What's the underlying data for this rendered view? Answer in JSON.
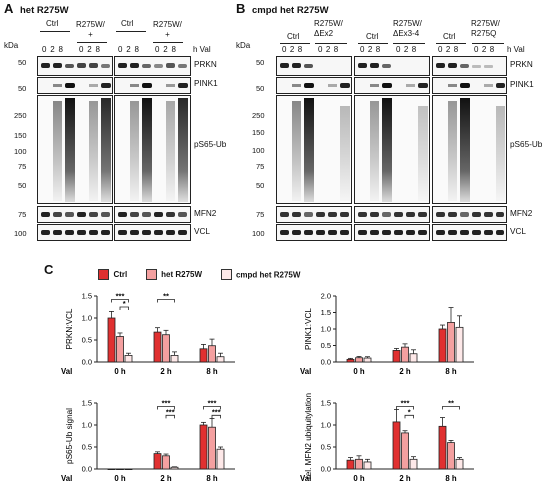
{
  "panelA": {
    "letter": "A",
    "title": "het R275W",
    "kda_label": "kDa",
    "groups": [
      "Ctrl",
      "R275W/\n+",
      "Ctrl",
      "R275W/\n+"
    ],
    "val_label": "h Val",
    "timepoints": [
      "0",
      "2",
      "8"
    ],
    "markers": [
      "50",
      "50",
      "250",
      "150",
      "100",
      "75",
      "50",
      "75",
      "100"
    ],
    "rows": [
      "PRKN",
      "PINK1",
      "pS65-Ub",
      "MFN2",
      "VCL"
    ]
  },
  "panelB": {
    "letter": "B",
    "title": "cmpd het R275W",
    "kda_label": "kDa",
    "groups": [
      "Ctrl",
      "R275W/\nΔEx2",
      "Ctrl",
      "R275W/\nΔEx3-4",
      "Ctrl",
      "R275W/\nR275Q"
    ],
    "val_label": "h Val",
    "timepoints": [
      "0",
      "2",
      "8"
    ],
    "markers": [
      "50",
      "50",
      "250",
      "150",
      "100",
      "75",
      "50",
      "75",
      "100"
    ],
    "rows": [
      "PRKN",
      "PINK1",
      "pS65-Ub",
      "MFN2",
      "VCL"
    ]
  },
  "panelC": {
    "letter": "C",
    "legend": [
      {
        "label": "Ctrl",
        "color": "#e03030"
      },
      {
        "label": "het R275W",
        "color": "#f4a0a0"
      },
      {
        "label": "cmpd het R275W",
        "color": "#fde8e8"
      }
    ]
  },
  "chart_data": [
    {
      "type": "bar",
      "ylabel": "PRKN:VCL",
      "xlabel": "Val",
      "categories": [
        "0 h",
        "2 h",
        "8 h"
      ],
      "ylim": [
        0,
        1.5
      ],
      "yticks": [
        "0.0",
        "0.5",
        "1.0",
        "1.5"
      ],
      "series": [
        {
          "name": "Ctrl",
          "values": [
            1.0,
            0.68,
            0.3
          ],
          "errors": [
            0.15,
            0.1,
            0.1
          ]
        },
        {
          "name": "het R275W",
          "values": [
            0.58,
            0.62,
            0.37
          ],
          "errors": [
            0.08,
            0.1,
            0.15
          ]
        },
        {
          "name": "cmpd het R275W",
          "values": [
            0.15,
            0.15,
            0.12
          ],
          "errors": [
            0.05,
            0.08,
            0.08
          ]
        }
      ],
      "significance": [
        {
          "label": "***",
          "group": 0,
          "from": 0,
          "to": 2,
          "level": 1.42
        },
        {
          "label": "*",
          "group": 0,
          "from": 1,
          "to": 2,
          "level": 1.25
        },
        {
          "label": "**",
          "group": 1,
          "from": 0,
          "to": 2,
          "level": 1.42
        }
      ]
    },
    {
      "type": "bar",
      "ylabel": "PINK1:VCL",
      "xlabel": "Val",
      "categories": [
        "0 h",
        "2 h",
        "8 h"
      ],
      "ylim": [
        0,
        2.0
      ],
      "yticks": [
        "0.0",
        "0.5",
        "1.0",
        "1.5",
        "2.0"
      ],
      "series": [
        {
          "name": "Ctrl",
          "values": [
            0.08,
            0.35,
            1.0
          ],
          "errors": [
            0.03,
            0.06,
            0.12
          ]
        },
        {
          "name": "het R275W",
          "values": [
            0.13,
            0.45,
            1.2
          ],
          "errors": [
            0.04,
            0.1,
            0.45
          ]
        },
        {
          "name": "cmpd het R275W",
          "values": [
            0.12,
            0.25,
            1.05
          ],
          "errors": [
            0.04,
            0.12,
            0.35
          ]
        }
      ],
      "significance": []
    },
    {
      "type": "bar",
      "ylabel": "pS65-Ub signal",
      "xlabel": "Val",
      "categories": [
        "0 h",
        "2 h",
        "8 h"
      ],
      "ylim": [
        0,
        1.5
      ],
      "yticks": [
        "0.0",
        "0.5",
        "1.0",
        "1.5"
      ],
      "series": [
        {
          "name": "Ctrl",
          "values": [
            0.0,
            0.35,
            1.0
          ],
          "errors": [
            0.0,
            0.04,
            0.06
          ]
        },
        {
          "name": "het R275W",
          "values": [
            0.0,
            0.3,
            0.95
          ],
          "errors": [
            0.0,
            0.04,
            0.2
          ]
        },
        {
          "name": "cmpd het R275W",
          "values": [
            0.0,
            0.04,
            0.45
          ],
          "errors": [
            0.0,
            0.01,
            0.05
          ]
        }
      ],
      "significance": [
        {
          "label": "***",
          "group": 1,
          "from": 0,
          "to": 2,
          "level": 1.42
        },
        {
          "label": "***",
          "group": 1,
          "from": 1,
          "to": 2,
          "level": 1.22
        },
        {
          "label": "***",
          "group": 2,
          "from": 0,
          "to": 2,
          "level": 1.42
        },
        {
          "label": "***",
          "group": 2,
          "from": 1,
          "to": 2,
          "level": 1.22
        }
      ]
    },
    {
      "type": "bar",
      "ylabel": "rel. MFN2 ubiquitylation",
      "xlabel": "Val",
      "categories": [
        "0 h",
        "2 h",
        "8 h"
      ],
      "ylim": [
        0,
        1.5
      ],
      "yticks": [
        "0.0",
        "0.5",
        "1.0",
        "1.5"
      ],
      "series": [
        {
          "name": "Ctrl",
          "values": [
            0.2,
            1.07,
            0.97
          ],
          "errors": [
            0.06,
            0.28,
            0.2
          ]
        },
        {
          "name": "het R275W",
          "values": [
            0.22,
            0.82,
            0.6
          ],
          "errors": [
            0.08,
            0.05,
            0.05
          ]
        },
        {
          "name": "cmpd het R275W",
          "values": [
            0.16,
            0.22,
            0.22
          ],
          "errors": [
            0.06,
            0.06,
            0.04
          ]
        }
      ],
      "significance": [
        {
          "label": "***",
          "group": 1,
          "from": 0,
          "to": 2,
          "level": 1.42
        },
        {
          "label": "*",
          "group": 1,
          "from": 1,
          "to": 2,
          "level": 1.22
        },
        {
          "label": "**",
          "group": 2,
          "from": 0,
          "to": 2,
          "level": 1.42
        }
      ]
    }
  ]
}
